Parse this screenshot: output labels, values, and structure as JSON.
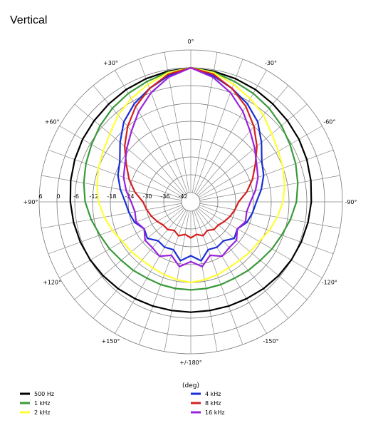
{
  "title": "Vertical",
  "chart_data": {
    "type": "polar",
    "title": "Vertical",
    "axis_unit_label": "(deg)",
    "angle_tick_labels": [
      {
        "deg": 0,
        "label": "0°"
      },
      {
        "deg": -30,
        "label": "+30°"
      },
      {
        "deg": 30,
        "label": "-30°"
      },
      {
        "deg": -60,
        "label": "+60°"
      },
      {
        "deg": 60,
        "label": "-60°"
      },
      {
        "deg": -90,
        "label": "+90°"
      },
      {
        "deg": 90,
        "label": "-90°"
      },
      {
        "deg": -120,
        "label": "+120°"
      },
      {
        "deg": 120,
        "label": "-120°"
      },
      {
        "deg": -150,
        "label": "+150°"
      },
      {
        "deg": 150,
        "label": "-150°"
      },
      {
        "deg": 180,
        "label": "+/-180°"
      }
    ],
    "radial_range_db": [
      -42,
      6
    ],
    "radial_ticks": [
      {
        "db": 6,
        "label": "6"
      },
      {
        "db": 0,
        "label": "0"
      },
      {
        "db": -6,
        "label": "-6"
      },
      {
        "db": -12,
        "label": "-12"
      },
      {
        "db": -18,
        "label": "-18"
      },
      {
        "db": -24,
        "label": "-24"
      },
      {
        "db": -30,
        "label": "-30"
      },
      {
        "db": -36,
        "label": "-36"
      },
      {
        "db": -42,
        "label": "-42"
      }
    ],
    "grid": true,
    "angular_grid_step_deg": 10,
    "legend_position": "bottom",
    "series": [
      {
        "name": "500 Hz",
        "color": "#000000",
        "angles": [
          0,
          10,
          20,
          30,
          40,
          50,
          60,
          70,
          80,
          90,
          100,
          110,
          120,
          130,
          140,
          150,
          160,
          170,
          180
        ],
        "values": [
          0,
          -0.5,
          -1,
          -1.5,
          -2.1,
          -2.6,
          -3,
          -3.5,
          -4,
          -4.5,
          -5,
          -5.5,
          -6,
          -6.5,
          -7,
          -7.5,
          -7.8,
          -8,
          -8
        ]
      },
      {
        "name": "1 kHz",
        "color": "#3a9a3a",
        "angles": [
          0,
          10,
          20,
          30,
          40,
          50,
          60,
          70,
          80,
          90,
          100,
          110,
          120,
          130,
          140,
          150,
          160,
          170,
          180
        ],
        "values": [
          0,
          -0.8,
          -2,
          -3,
          -4,
          -5.2,
          -6.5,
          -7.5,
          -8.5,
          -9.5,
          -11,
          -12.5,
          -13.5,
          -14.5,
          -15,
          -15.5,
          -15.5,
          -15.5,
          -15.5
        ]
      },
      {
        "name": "2 kHz",
        "color": "#ffff33",
        "angles": [
          0,
          10,
          20,
          30,
          40,
          50,
          60,
          70,
          80,
          90,
          100,
          110,
          120,
          130,
          140,
          150,
          160,
          170,
          180
        ],
        "values": [
          0,
          -1,
          -3,
          -5,
          -7,
          -9.5,
          -11,
          -12,
          -13,
          -14,
          -15.5,
          -17,
          -18.5,
          -19,
          -19.5,
          -19.5,
          -19,
          -18.5,
          -18
        ]
      },
      {
        "name": "4 kHz",
        "color": "#1a2ed6",
        "angles": [
          0,
          10,
          20,
          30,
          40,
          50,
          60,
          70,
          80,
          90,
          100,
          110,
          120,
          130,
          140,
          150,
          160,
          170,
          180
        ],
        "values": [
          0,
          -2,
          -4.5,
          -7,
          -10,
          -14,
          -17.5,
          -19,
          -21,
          -23,
          -24,
          -25,
          -27,
          -26,
          -28,
          -27.5,
          -28,
          -25,
          -27
        ]
      },
      {
        "name": "8 kHz",
        "color": "#d42020",
        "angles": [
          0,
          10,
          20,
          30,
          40,
          50,
          60,
          70,
          80,
          90,
          100,
          110,
          120,
          130,
          140,
          150,
          160,
          170,
          180
        ],
        "values": [
          0,
          -1.5,
          -4.5,
          -8,
          -12,
          -16,
          -20,
          -23,
          -26,
          -29,
          -30,
          -31,
          -32,
          -33,
          -33,
          -34,
          -33,
          -34,
          -33
        ]
      },
      {
        "name": "16 kHz",
        "color": "#9922dd",
        "angles": [
          0,
          10,
          20,
          30,
          40,
          50,
          60,
          70,
          80,
          90,
          100,
          110,
          120,
          130,
          140,
          150,
          160,
          170,
          180
        ],
        "values": [
          0,
          -2.5,
          -6,
          -10,
          -14,
          -17,
          -19.5,
          -21,
          -23,
          -25,
          -26,
          -25.5,
          -27,
          -25,
          -25,
          -24,
          -26,
          -23,
          -25
        ]
      }
    ]
  }
}
